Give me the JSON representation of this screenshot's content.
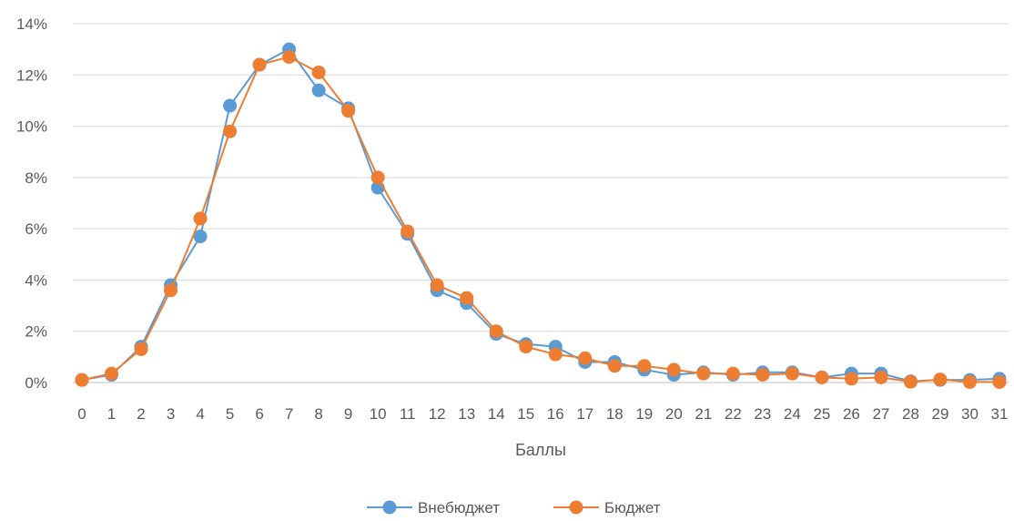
{
  "chart_data": {
    "type": "line",
    "xlabel": "Баллы",
    "ylabel": "",
    "ylim": [
      0,
      0.14
    ],
    "y_ticks": [
      0,
      0.02,
      0.04,
      0.06,
      0.08,
      0.1,
      0.12,
      0.14
    ],
    "y_tick_labels": [
      "0%",
      "2%",
      "4%",
      "6%",
      "8%",
      "10%",
      "12%",
      "14%"
    ],
    "categories": [
      "0",
      "1",
      "2",
      "3",
      "4",
      "5",
      "6",
      "7",
      "8",
      "9",
      "10",
      "11",
      "12",
      "13",
      "14",
      "15",
      "16",
      "17",
      "18",
      "19",
      "20",
      "21",
      "22",
      "23",
      "24",
      "25",
      "26",
      "27",
      "28",
      "29",
      "30",
      "31"
    ],
    "grid": true,
    "legend_position": "bottom",
    "series": [
      {
        "name": "Внебюджет",
        "color": "#5B9BD5",
        "values": [
          0.001,
          0.003,
          0.014,
          0.038,
          0.057,
          0.108,
          0.124,
          0.13,
          0.114,
          0.107,
          0.076,
          0.058,
          0.036,
          0.031,
          0.019,
          0.015,
          0.014,
          0.008,
          0.008,
          0.005,
          0.003,
          0.004,
          0.003,
          0.004,
          0.004,
          0.002,
          0.0035,
          0.0035,
          0.0005,
          0.001,
          0.001,
          0.0015
        ]
      },
      {
        "name": "Бюджет",
        "color": "#ED7D31",
        "values": [
          0.001,
          0.0035,
          0.013,
          0.036,
          0.064,
          0.098,
          0.124,
          0.127,
          0.121,
          0.106,
          0.08,
          0.059,
          0.038,
          0.033,
          0.02,
          0.014,
          0.011,
          0.0095,
          0.0065,
          0.0065,
          0.005,
          0.0035,
          0.0035,
          0.003,
          0.0035,
          0.002,
          0.0015,
          0.002,
          0.0003,
          0.0012,
          0.0002,
          0.0002
        ]
      }
    ]
  }
}
